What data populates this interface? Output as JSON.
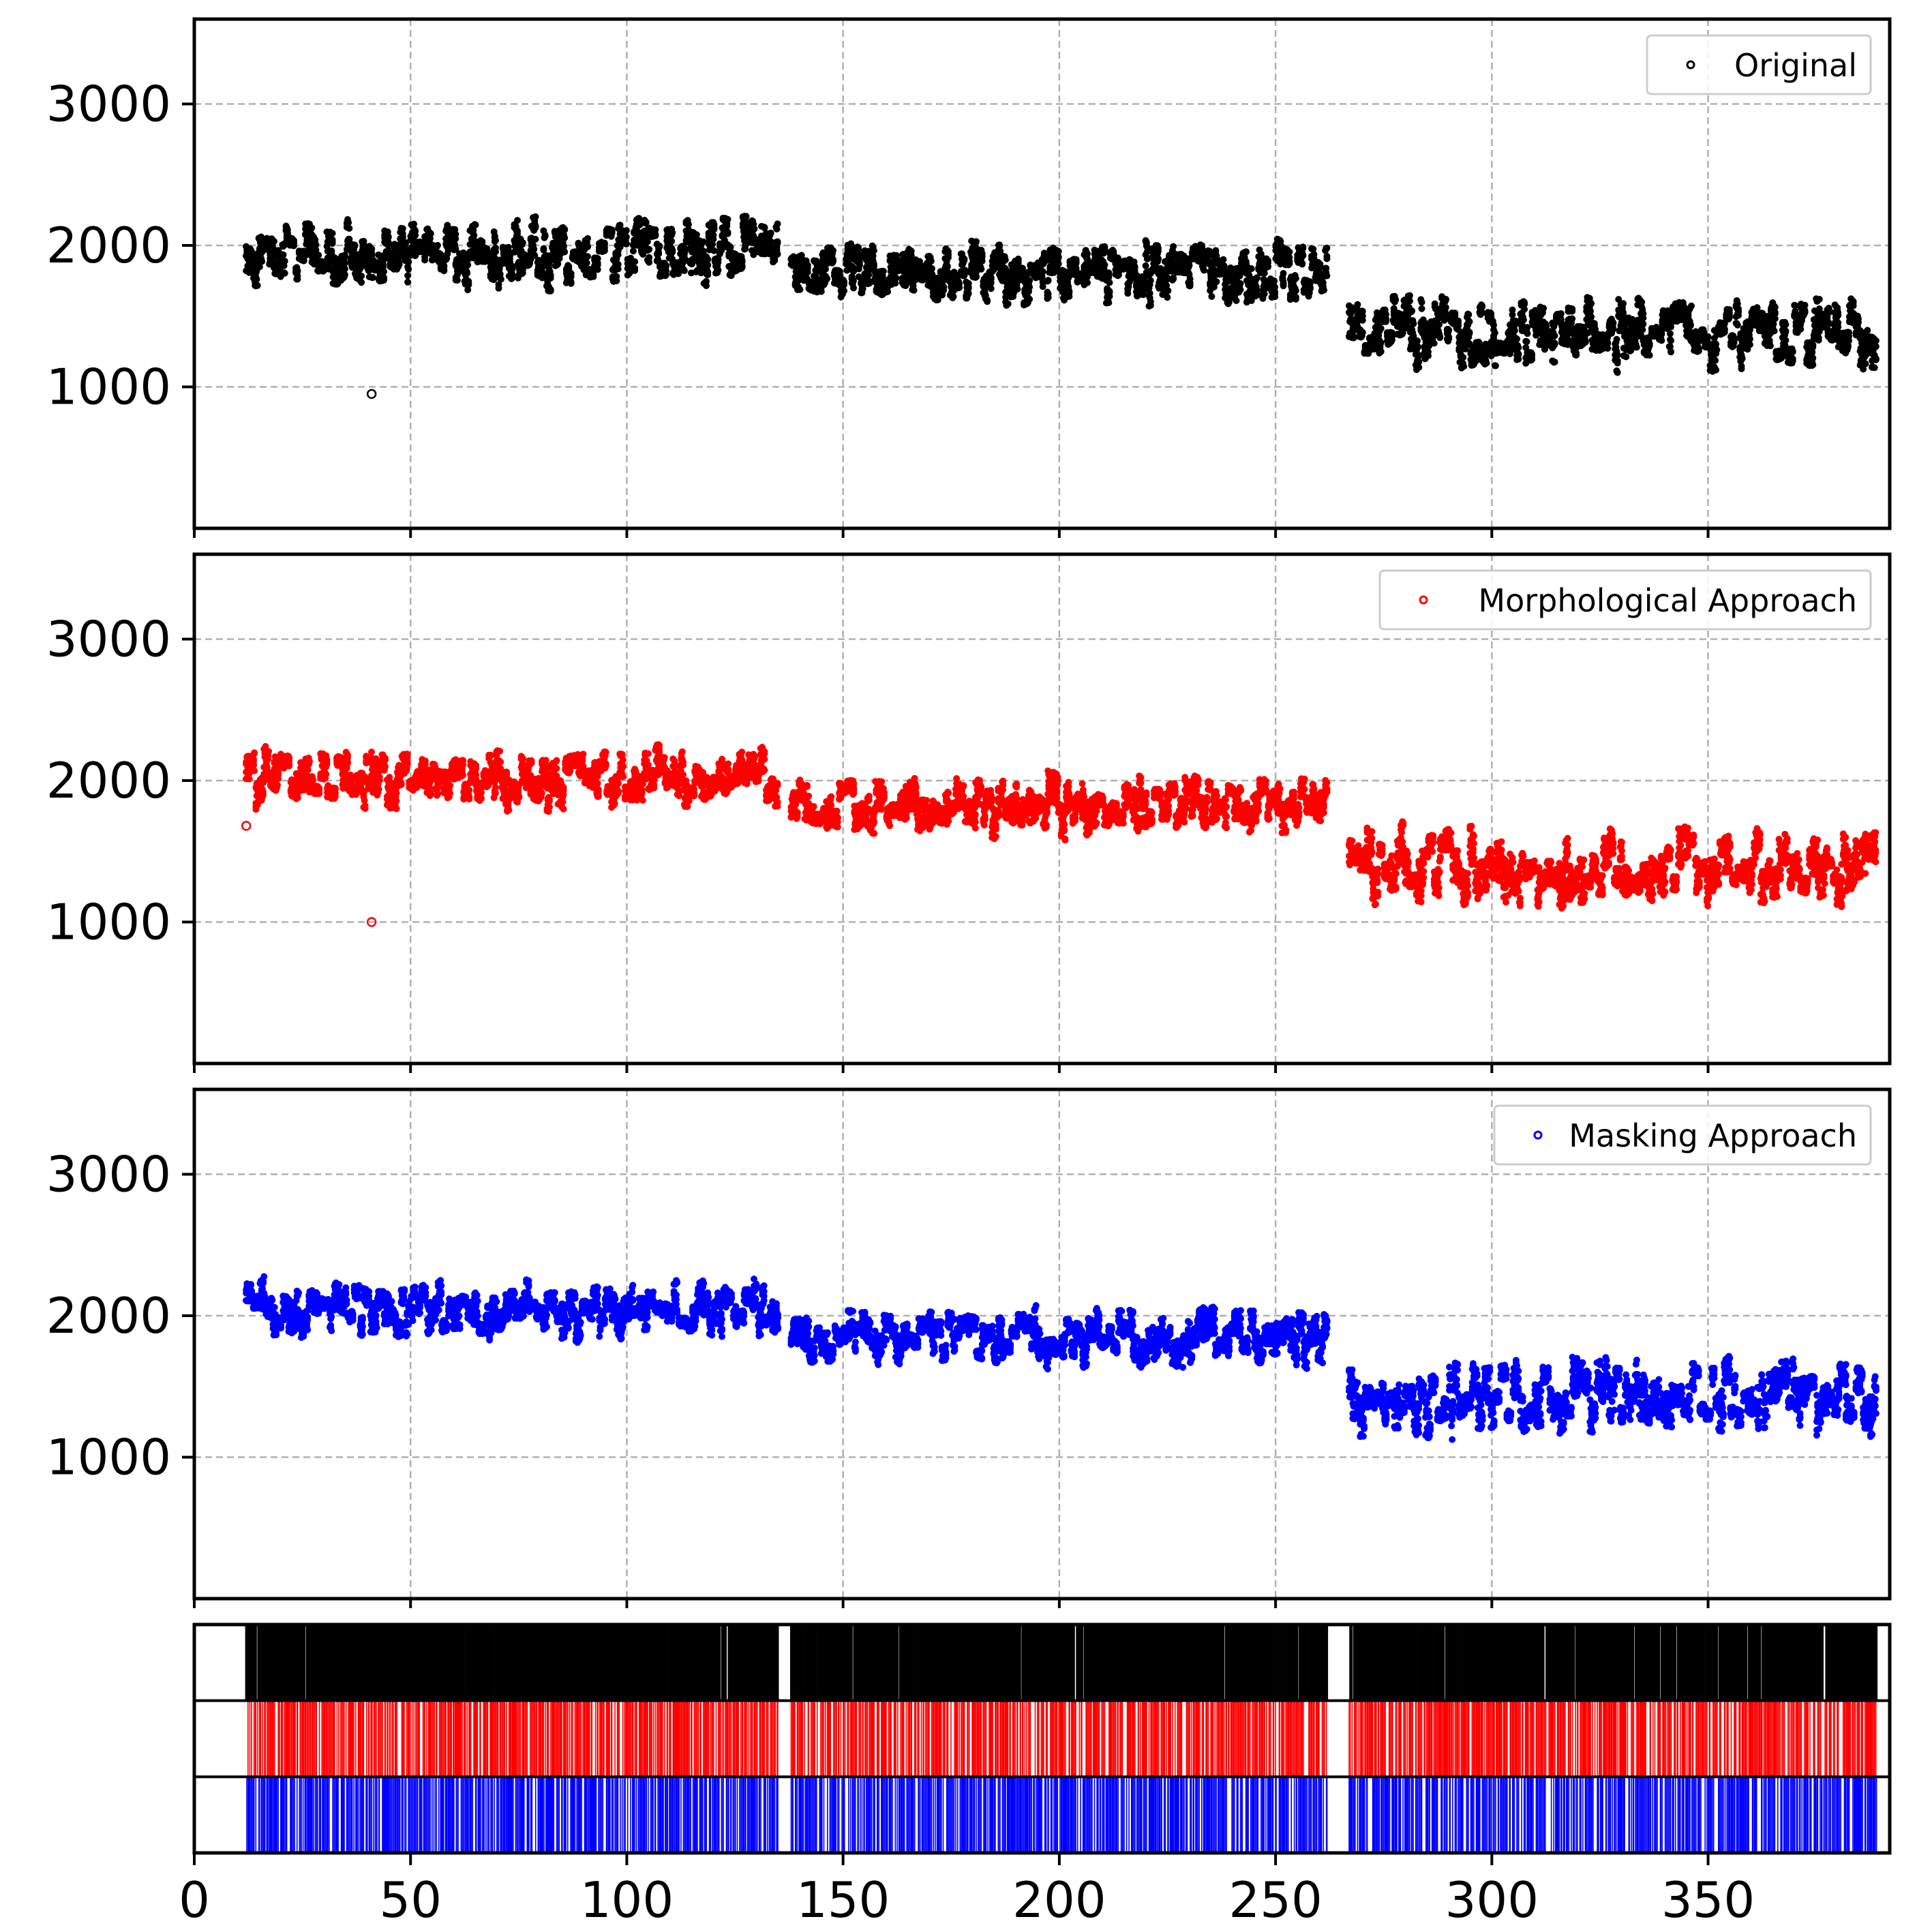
{
  "chart_data": [
    {
      "type": "scatter",
      "series": [
        {
          "name": "Original",
          "color": "#000000"
        }
      ],
      "xlim": [
        0,
        392
      ],
      "ylim": [
        0,
        3600
      ],
      "yticks": [
        1000,
        2000,
        3000
      ],
      "xticks_visible": false,
      "grid": true,
      "legend_position": "top-right",
      "segments": [
        {
          "x_start": 12,
          "x_end": 135,
          "y_base": 1950,
          "y_spread": 260
        },
        {
          "x_start": 138,
          "x_end": 262,
          "y_base": 1820,
          "y_spread": 230
        },
        {
          "x_start": 267,
          "x_end": 389,
          "y_base": 1380,
          "y_spread": 280
        }
      ],
      "outliers": [
        {
          "x": 41,
          "y": 950
        }
      ]
    },
    {
      "type": "scatter",
      "series": [
        {
          "name": "Morphological Approach",
          "color": "#ff0000"
        }
      ],
      "xlim": [
        0,
        392
      ],
      "ylim": [
        0,
        3600
      ],
      "yticks": [
        1000,
        2000,
        3000
      ],
      "xticks_visible": false,
      "grid": true,
      "legend_position": "top-right",
      "segments": [
        {
          "x_start": 12,
          "x_end": 135,
          "y_base": 2020,
          "y_spread": 220
        },
        {
          "x_start": 138,
          "x_end": 262,
          "y_base": 1830,
          "y_spread": 220
        },
        {
          "x_start": 267,
          "x_end": 389,
          "y_base": 1420,
          "y_spread": 300
        }
      ],
      "outliers": [
        {
          "x": 41,
          "y": 1000
        },
        {
          "x": 12,
          "y": 1680
        }
      ]
    },
    {
      "type": "scatter",
      "series": [
        {
          "name": "Masking Approach",
          "color": "#0000ff"
        }
      ],
      "xlim": [
        0,
        392
      ],
      "ylim": [
        0,
        3600
      ],
      "yticks": [
        1000,
        2000,
        3000
      ],
      "xticks_visible": false,
      "grid": true,
      "legend_position": "top-right",
      "segments": [
        {
          "x_start": 12,
          "x_end": 135,
          "y_base": 2040,
          "y_spread": 220
        },
        {
          "x_start": 138,
          "x_end": 262,
          "y_base": 1850,
          "y_spread": 210
        },
        {
          "x_start": 267,
          "x_end": 389,
          "y_base": 1430,
          "y_spread": 300
        }
      ],
      "outliers": []
    },
    {
      "type": "event-raster",
      "xlim": [
        0,
        392
      ],
      "xticks": [
        0,
        50,
        100,
        150,
        200,
        250,
        300,
        350
      ],
      "rows": [
        {
          "color": "#000000",
          "spans": [
            [
              12,
              135
            ],
            [
              138,
              262
            ],
            [
              267,
              389
            ]
          ]
        },
        {
          "color": "#ff0000",
          "spans": [
            [
              12,
              135
            ],
            [
              138,
              262
            ],
            [
              267,
              389
            ]
          ]
        },
        {
          "color": "#0000ff",
          "spans": [
            [
              12,
              135
            ],
            [
              138,
              262
            ],
            [
              267,
              389
            ]
          ]
        }
      ]
    }
  ]
}
